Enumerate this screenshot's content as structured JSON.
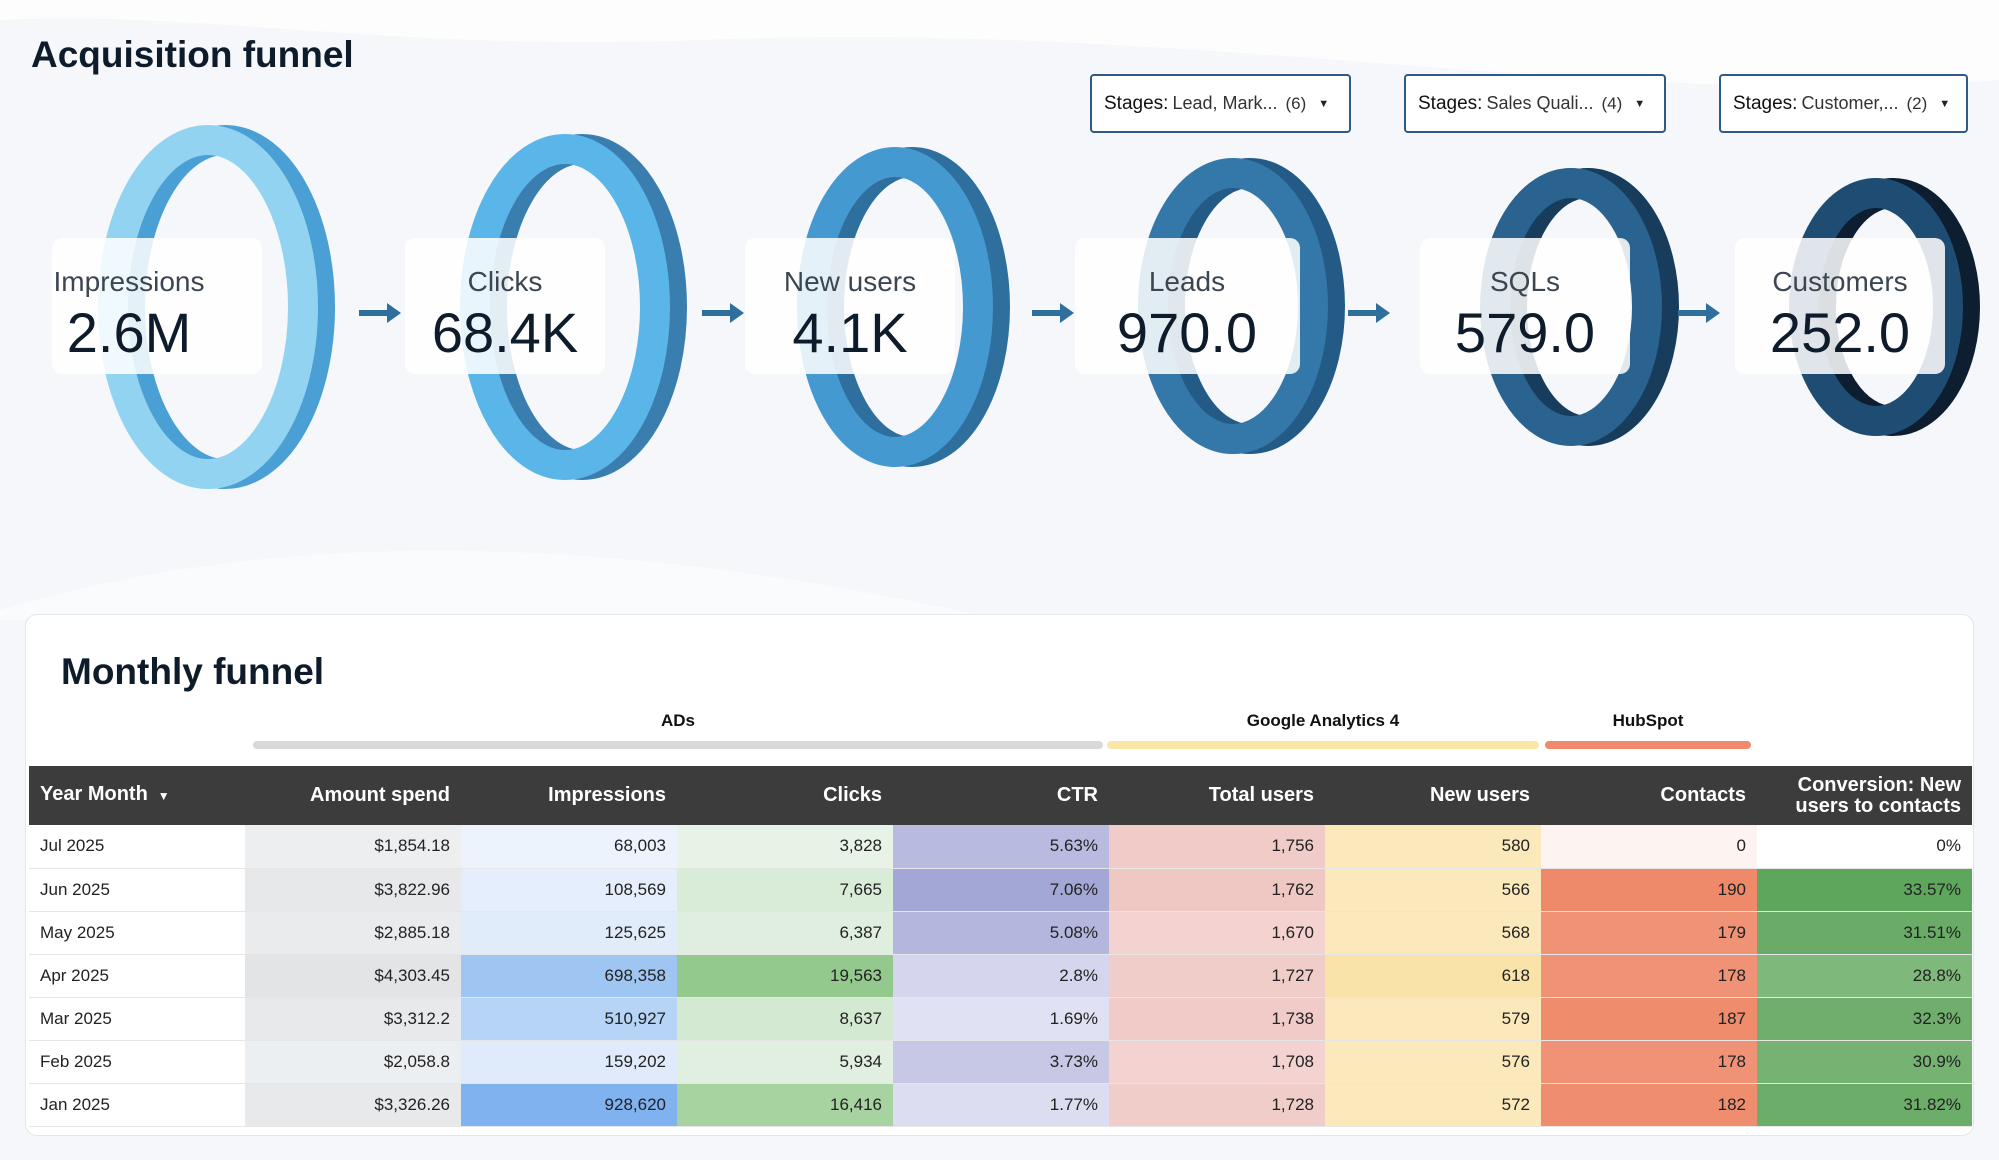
{
  "page": {
    "title": "Acquisition funnel"
  },
  "filters": [
    {
      "label": "Stages:",
      "value": "Lead, Mark...",
      "count": "(6)"
    },
    {
      "label": "Stages:",
      "value": "Sales Quali...",
      "count": "(4)"
    },
    {
      "label": "Stages:",
      "value": "Customer,...",
      "count": "(2)"
    }
  ],
  "funnel": [
    {
      "label": "Impressions",
      "value": "2.6M",
      "color": "#8fd0f0"
    },
    {
      "label": "Clicks",
      "value": "68.4K",
      "color": "#5ab4e8"
    },
    {
      "label": "New users",
      "value": "4.1K",
      "color": "#4399d0"
    },
    {
      "label": "Leads",
      "value": "970.0",
      "color": "#3278a8"
    },
    {
      "label": "SQLs",
      "value": "579.0",
      "color": "#285f8a"
    },
    {
      "label": "Customers",
      "value": "252.0",
      "color": "#1c4568"
    }
  ],
  "monthly": {
    "title": "Monthly funnel",
    "groups": [
      {
        "name": "ADs",
        "color": "#d9d9d9"
      },
      {
        "name": "Google Analytics 4",
        "color": "#fbe6a8"
      },
      {
        "name": "HubSpot",
        "color": "#ef8a6c"
      }
    ],
    "columns": [
      "Year Month",
      "Amount spend",
      "Impressions",
      "Clicks",
      "CTR",
      "Total users",
      "New users",
      "Contacts",
      "Conversion: New users to contacts"
    ],
    "rows": [
      [
        "Jul 2025",
        "$1,854.18",
        "68,003",
        "3,828",
        "5.63%",
        "1,756",
        "580",
        "0",
        "0%"
      ],
      [
        "Jun 2025",
        "$3,822.96",
        "108,569",
        "7,665",
        "7.06%",
        "1,762",
        "566",
        "190",
        "33.57%"
      ],
      [
        "May 2025",
        "$2,885.18",
        "125,625",
        "6,387",
        "5.08%",
        "1,670",
        "568",
        "179",
        "31.51%"
      ],
      [
        "Apr 2025",
        "$4,303.45",
        "698,358",
        "19,563",
        "2.8%",
        "1,727",
        "618",
        "178",
        "28.8%"
      ],
      [
        "Mar 2025",
        "$3,312.2",
        "510,927",
        "8,637",
        "1.69%",
        "1,738",
        "579",
        "187",
        "32.3%"
      ],
      [
        "Feb 2025",
        "$2,058.8",
        "159,202",
        "5,934",
        "3.73%",
        "1,708",
        "576",
        "178",
        "30.9%"
      ],
      [
        "Jan 2025",
        "$3,326.26",
        "928,620",
        "16,416",
        "1.77%",
        "1,728",
        "572",
        "182",
        "31.82%"
      ]
    ],
    "cell_colors": [
      [
        "#ffffff",
        "#edeef0",
        "#ecf3fd",
        "#e8f3e8",
        "#b8badf",
        "#f0cbc8",
        "#fbe9bb",
        "#fdf3f0",
        "#ffffff"
      ],
      [
        "#ffffff",
        "#e7e8ea",
        "#e4eefc",
        "#d9ecd8",
        "#a3a7d6",
        "#efc8c4",
        "#fbe9bb",
        "#ee8a6a",
        "#5fa65d"
      ],
      [
        "#ffffff",
        "#eaebed",
        "#e1ecfb",
        "#dfeede",
        "#b4b7dd",
        "#f3d2cf",
        "#fbe9bb",
        "#ef9275",
        "#6aab67"
      ],
      [
        "#ffffff",
        "#e3e4e6",
        "#9fc6f2",
        "#94c98e",
        "#d5d6ee",
        "#f1cdc9",
        "#f9e3a8",
        "#ef9275",
        "#7eb87b"
      ],
      [
        "#ffffff",
        "#e8e9eb",
        "#b6d4f5",
        "#d4e9d2",
        "#e0e1f3",
        "#f0cbc8",
        "#fbe9bb",
        "#ee8c6c",
        "#6fae6c"
      ],
      [
        "#ffffff",
        "#eceff1",
        "#dfeafb",
        "#e0efdf",
        "#c6c8e6",
        "#f3d2cf",
        "#fbe9bb",
        "#ef9275",
        "#76b373"
      ],
      [
        "#ffffff",
        "#e8e9eb",
        "#7fb2ee",
        "#a6d3a0",
        "#dcddf1",
        "#f1cdc9",
        "#fbe9bb",
        "#ee8e6f",
        "#6dad6a"
      ]
    ]
  }
}
